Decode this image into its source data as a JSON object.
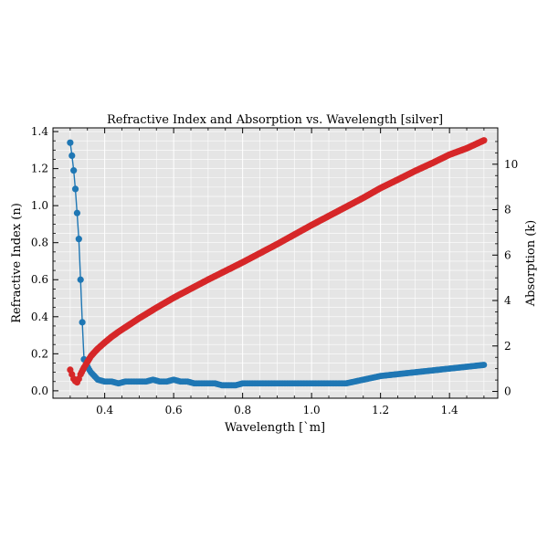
{
  "chart_data": {
    "type": "line",
    "title": "Refractive Index and Absorption vs. Wavelength [silver]",
    "xlabel": "Wavelength [`m]",
    "ylabel_left": "Refractive Index (n)",
    "ylabel_right": "Absorption (k)",
    "xlim": [
      0.25,
      1.54
    ],
    "ylim_left": [
      -0.04,
      1.42
    ],
    "ylim_right": [
      -0.3,
      11.6
    ],
    "xticks": [
      0.4,
      0.6,
      0.8,
      1.0,
      1.2,
      1.4
    ],
    "xtick_labels": [
      "0.4",
      "0.6",
      "0.8",
      "1.0",
      "1.2",
      "1.4"
    ],
    "yticks_left": [
      0.0,
      0.2,
      0.4,
      0.6,
      0.8,
      1.0,
      1.2,
      1.4
    ],
    "ytick_labels_left": [
      "0.0",
      "0.2",
      "0.4",
      "0.6",
      "0.8",
      "1.0",
      "1.2",
      "1.4"
    ],
    "yticks_right": [
      0,
      2,
      4,
      6,
      8,
      10
    ],
    "ytick_labels_right": [
      "0",
      "2",
      "4",
      "6",
      "8",
      "10"
    ],
    "grid": true,
    "colors": {
      "n": "#1f77b4",
      "k": "#d62728",
      "plot_background": "#e5e5e5",
      "grid": "#ffffff"
    },
    "series": [
      {
        "axis": "left",
        "x": [
          0.3,
          0.305,
          0.31,
          0.315,
          0.32,
          0.325,
          0.33,
          0.335,
          0.34,
          0.35,
          0.36,
          0.37,
          0.38,
          0.4,
          0.42,
          0.44,
          0.46,
          0.48,
          0.5,
          0.52,
          0.54,
          0.56,
          0.58,
          0.6,
          0.62,
          0.64,
          0.66,
          0.68,
          0.7,
          0.72,
          0.74,
          0.76,
          0.78,
          0.8,
          0.85,
          0.9,
          0.95,
          1.0,
          1.05,
          1.1,
          1.15,
          1.2,
          1.25,
          1.3,
          1.35,
          1.4,
          1.45,
          1.5
        ],
        "y": [
          1.34,
          1.27,
          1.19,
          1.09,
          0.96,
          0.82,
          0.6,
          0.37,
          0.17,
          0.13,
          0.1,
          0.08,
          0.06,
          0.05,
          0.05,
          0.04,
          0.05,
          0.05,
          0.05,
          0.05,
          0.06,
          0.05,
          0.05,
          0.06,
          0.05,
          0.05,
          0.04,
          0.04,
          0.04,
          0.04,
          0.03,
          0.03,
          0.03,
          0.04,
          0.04,
          0.04,
          0.04,
          0.04,
          0.04,
          0.04,
          0.06,
          0.08,
          0.09,
          0.1,
          0.11,
          0.12,
          0.13,
          0.14
        ]
      },
      {
        "axis": "right",
        "x": [
          0.3,
          0.305,
          0.31,
          0.315,
          0.32,
          0.325,
          0.33,
          0.34,
          0.35,
          0.36,
          0.37,
          0.38,
          0.4,
          0.42,
          0.44,
          0.46,
          0.48,
          0.5,
          0.55,
          0.6,
          0.65,
          0.7,
          0.75,
          0.8,
          0.85,
          0.9,
          0.95,
          1.0,
          1.05,
          1.1,
          1.15,
          1.2,
          1.25,
          1.3,
          1.35,
          1.4,
          1.45,
          1.5
        ],
        "y": [
          0.95,
          0.75,
          0.55,
          0.45,
          0.4,
          0.55,
          0.75,
          1.05,
          1.3,
          1.55,
          1.72,
          1.88,
          2.15,
          2.4,
          2.62,
          2.82,
          3.02,
          3.22,
          3.68,
          4.12,
          4.52,
          4.92,
          5.3,
          5.68,
          6.08,
          6.48,
          6.9,
          7.32,
          7.72,
          8.12,
          8.52,
          8.95,
          9.32,
          9.7,
          10.05,
          10.42,
          10.7,
          11.05
        ]
      }
    ]
  }
}
